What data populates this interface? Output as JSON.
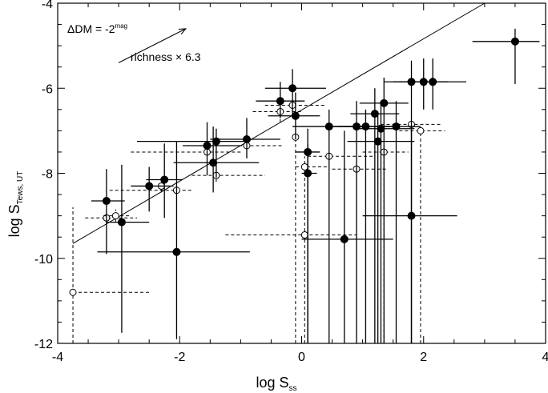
{
  "chart_data": {
    "type": "scatter",
    "title": "",
    "xlabel_main": "log S",
    "xlabel_sub": "ss",
    "ylabel_main": "log S",
    "ylabel_sub": "Tews, UT",
    "xlim": [
      -4,
      4
    ],
    "ylim": [
      -12,
      -4
    ],
    "xticks": [
      -4,
      -2,
      0,
      2,
      4
    ],
    "yticks": [
      -12,
      -10,
      -8,
      -6,
      -4
    ],
    "grid": false,
    "legend": "none",
    "annotations": {
      "delta_dm": "ΔDM = -2",
      "delta_dm_sup": "mag",
      "richness": "richness × 6.3"
    },
    "reference_line": {
      "x": [
        -3.75,
        3.0
      ],
      "y": [
        -9.65,
        -4.0
      ]
    },
    "arrow": {
      "from": [
        -3.0,
        -5.4
      ],
      "to": [
        -1.9,
        -4.6
      ]
    },
    "series": [
      {
        "marker": "open-circle",
        "linestyle": "dashed",
        "points": [
          {
            "x": -3.75,
            "y": -10.8,
            "xl": -3.75,
            "xh": -2.5,
            "yl": -12.0,
            "yh": -8.8
          },
          {
            "x": -3.2,
            "y": -9.05,
            "xl": -3.55,
            "xh": -2.7,
            "yl": -9.25,
            "yh": -8.85
          },
          {
            "x": -3.05,
            "y": -9.0,
            "xl": -3.25,
            "xh": -2.8,
            "yl": -9.15,
            "yh": -8.85
          },
          {
            "x": -2.3,
            "y": -8.3,
            "xl": -2.6,
            "xh": -2.1,
            "yl": -8.45,
            "yh": -8.15
          },
          {
            "x": -2.05,
            "y": -8.4,
            "xl": -3.15,
            "xh": -1.8,
            "yl": -8.5,
            "yh": -8.3
          },
          {
            "x": -1.55,
            "y": -7.5,
            "xl": -2.8,
            "xh": -1.0,
            "yl": -7.6,
            "yh": -7.4
          },
          {
            "x": -1.4,
            "y": -8.05,
            "xl": -1.8,
            "xh": -0.6,
            "yl": -8.2,
            "yh": -7.9
          },
          {
            "x": -0.9,
            "y": -7.35,
            "xl": -1.3,
            "xh": -0.3,
            "yl": -7.45,
            "yh": -7.25
          },
          {
            "x": -0.35,
            "y": -6.55,
            "xl": -0.8,
            "xh": 0.0,
            "yl": -6.8,
            "yh": -6.3
          },
          {
            "x": -0.15,
            "y": -6.4,
            "xl": -0.6,
            "xh": 0.4,
            "yl": -6.55,
            "yh": -6.25
          },
          {
            "x": -0.1,
            "y": -7.15,
            "xl": -0.1,
            "xh": -0.1,
            "yl": -12.0,
            "yh": -7.0
          },
          {
            "x": 0.05,
            "y": -7.85,
            "xl": -0.1,
            "xh": 0.45,
            "yl": -12.0,
            "yh": -7.6
          },
          {
            "x": 0.05,
            "y": -9.45,
            "xl": -1.25,
            "xh": 0.9,
            "yl": -9.55,
            "yh": -9.35
          },
          {
            "x": 0.45,
            "y": -7.6,
            "xl": 0.1,
            "xh": 1.2,
            "yl": -7.7,
            "yh": -7.5
          },
          {
            "x": 0.9,
            "y": -7.9,
            "xl": 0.5,
            "xh": 1.4,
            "yl": -12.0,
            "yh": -7.75
          },
          {
            "x": 1.35,
            "y": -7.5,
            "xl": 1.0,
            "xh": 1.75,
            "yl": -12.0,
            "yh": -7.35
          },
          {
            "x": 1.8,
            "y": -6.85,
            "xl": 1.3,
            "xh": 2.3,
            "yl": -7.0,
            "yh": -6.7
          },
          {
            "x": 1.95,
            "y": -7.0,
            "xl": 1.6,
            "xh": 2.35,
            "yl": -12.0,
            "yh": -6.85
          }
        ]
      },
      {
        "marker": "filled-circle",
        "linestyle": "solid",
        "points": [
          {
            "x": -3.2,
            "y": -8.65,
            "xl": -3.45,
            "xh": -2.9,
            "yl": -9.9,
            "yh": -7.9
          },
          {
            "x": -2.95,
            "y": -9.15,
            "xl": -3.2,
            "xh": -2.5,
            "yl": -11.75,
            "yh": -7.8
          },
          {
            "x": -2.5,
            "y": -8.3,
            "xl": -2.8,
            "xh": -2.15,
            "yl": -8.9,
            "yh": -7.85
          },
          {
            "x": -2.25,
            "y": -8.15,
            "xl": -2.55,
            "xh": -1.95,
            "yl": -9.05,
            "yh": -7.3
          },
          {
            "x": -2.05,
            "y": -9.85,
            "xl": -3.35,
            "xh": -0.85,
            "yl": -11.9,
            "yh": -7.25
          },
          {
            "x": -1.55,
            "y": -7.35,
            "xl": -1.95,
            "xh": -1.0,
            "yl": -8.05,
            "yh": -6.8
          },
          {
            "x": -1.45,
            "y": -7.75,
            "xl": -2.1,
            "xh": -0.7,
            "yl": -8.45,
            "yh": -6.9
          },
          {
            "x": -1.4,
            "y": -7.25,
            "xl": -2.7,
            "xh": -0.95,
            "yl": -8.1,
            "yh": -6.95
          },
          {
            "x": -0.9,
            "y": -7.2,
            "xl": -1.5,
            "xh": -0.35,
            "yl": -7.65,
            "yh": -6.7
          },
          {
            "x": -0.35,
            "y": -6.3,
            "xl": -0.75,
            "xh": 0.05,
            "yl": -6.7,
            "yh": -5.85
          },
          {
            "x": -0.15,
            "y": -6.0,
            "xl": -0.6,
            "xh": 0.4,
            "yl": -6.7,
            "yh": -5.55
          },
          {
            "x": -0.1,
            "y": -6.65,
            "xl": -0.55,
            "xh": 0.3,
            "yl": -7.2,
            "yh": -6.1
          },
          {
            "x": 0.1,
            "y": -7.5,
            "xl": -0.1,
            "xh": 0.3,
            "yl": -12.0,
            "yh": -6.95
          },
          {
            "x": 0.1,
            "y": -8.0,
            "xl": 0.0,
            "xh": 0.25,
            "yl": -12.0,
            "yh": -7.3
          },
          {
            "x": 0.45,
            "y": -6.9,
            "xl": -0.15,
            "xh": 1.0,
            "yl": -12.0,
            "yh": -6.5
          },
          {
            "x": 0.7,
            "y": -9.55,
            "xl": 0.0,
            "xh": 1.5,
            "yl": -12.0,
            "yh": -7.0
          },
          {
            "x": 0.9,
            "y": -6.9,
            "xl": 0.5,
            "xh": 1.45,
            "yl": -12.0,
            "yh": -6.3
          },
          {
            "x": 1.05,
            "y": -6.9,
            "xl": 0.6,
            "xh": 1.55,
            "yl": -12.0,
            "yh": -6.5
          },
          {
            "x": 1.2,
            "y": -6.6,
            "xl": 0.8,
            "xh": 1.6,
            "yl": -12.0,
            "yh": -6.0
          },
          {
            "x": 1.25,
            "y": -7.25,
            "xl": 0.75,
            "xh": 1.85,
            "yl": -12.0,
            "yh": -6.55
          },
          {
            "x": 1.3,
            "y": -6.95,
            "xl": 0.9,
            "xh": 1.85,
            "yl": -12.0,
            "yh": -6.3
          },
          {
            "x": 1.35,
            "y": -6.35,
            "xl": 0.95,
            "xh": 1.75,
            "yl": -12.0,
            "yh": -5.75
          },
          {
            "x": 1.55,
            "y": -6.9,
            "xl": 1.2,
            "xh": 1.95,
            "yl": -12.0,
            "yh": -6.3
          },
          {
            "x": 1.8,
            "y": -5.85,
            "xl": 1.35,
            "xh": 2.2,
            "yl": -12.0,
            "yh": -5.35
          },
          {
            "x": 1.8,
            "y": -9.0,
            "xl": 1.0,
            "xh": 2.55,
            "yl": -12.0,
            "yh": -7.0
          },
          {
            "x": 2.0,
            "y": -5.85,
            "xl": 1.6,
            "xh": 2.4,
            "yl": -6.5,
            "yh": -5.3
          },
          {
            "x": 2.15,
            "y": -5.85,
            "xl": 1.5,
            "xh": 2.7,
            "yl": -6.5,
            "yh": -5.3
          },
          {
            "x": 3.5,
            "y": -4.9,
            "xl": 2.8,
            "xh": 3.9,
            "yl": -5.9,
            "yh": -4.6
          }
        ]
      }
    ]
  }
}
